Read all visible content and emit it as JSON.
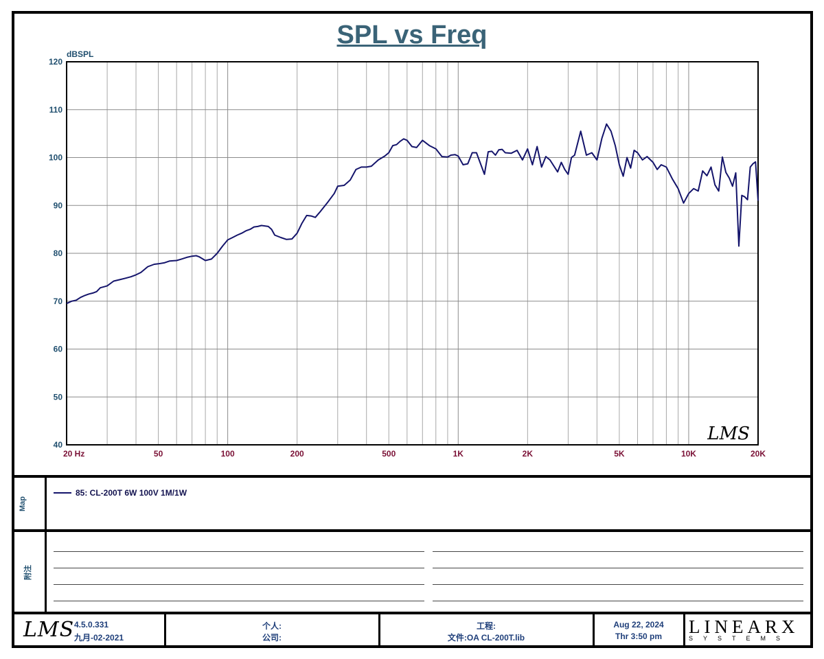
{
  "title": "SPL vs Freq",
  "chart_data": {
    "type": "line",
    "title": "SPL vs Freq",
    "ylabel": "dBSPL",
    "xscale": "log",
    "xlim": [
      20,
      20000
    ],
    "ylim": [
      40,
      120
    ],
    "y_ticks": [
      40,
      50,
      60,
      70,
      80,
      90,
      100,
      110,
      120
    ],
    "x_tick_labels": [
      {
        "f": 20,
        "label": "20  Hz"
      },
      {
        "f": 50,
        "label": "50"
      },
      {
        "f": 100,
        "label": "100"
      },
      {
        "f": 200,
        "label": "200"
      },
      {
        "f": 500,
        "label": "500"
      },
      {
        "f": 1000,
        "label": "1K"
      },
      {
        "f": 2000,
        "label": "2K"
      },
      {
        "f": 5000,
        "label": "5K"
      },
      {
        "f": 10000,
        "label": "10K"
      },
      {
        "f": 20000,
        "label": "20K"
      }
    ],
    "grid": true,
    "watermark": "LMS",
    "series": [
      {
        "name": "85: CL-200T  6W 100V 1M/1W",
        "color": "#14146b",
        "x": [
          20,
          21,
          22,
          23,
          24,
          25,
          26,
          27,
          28,
          29,
          30,
          32,
          34,
          36,
          38,
          40,
          42,
          45,
          48,
          50,
          53,
          56,
          60,
          63,
          67,
          70,
          73,
          75,
          80,
          85,
          90,
          95,
          100,
          105,
          110,
          115,
          120,
          125,
          130,
          135,
          140,
          150,
          155,
          160,
          170,
          180,
          190,
          200,
          210,
          220,
          230,
          240,
          250,
          270,
          290,
          300,
          320,
          340,
          360,
          380,
          400,
          420,
          450,
          480,
          500,
          520,
          540,
          560,
          580,
          600,
          630,
          660,
          700,
          750,
          800,
          850,
          900,
          930,
          970,
          1000,
          1050,
          1100,
          1150,
          1200,
          1300,
          1350,
          1400,
          1450,
          1500,
          1550,
          1600,
          1700,
          1800,
          1900,
          2000,
          2100,
          2200,
          2300,
          2400,
          2500,
          2700,
          2800,
          2900,
          3000,
          3100,
          3200,
          3400,
          3600,
          3800,
          4000,
          4200,
          4400,
          4600,
          4800,
          5000,
          5200,
          5400,
          5600,
          5800,
          6000,
          6300,
          6600,
          7000,
          7300,
          7600,
          8000,
          8500,
          9000,
          9500,
          10000,
          10500,
          11000,
          11500,
          12000,
          12500,
          13000,
          13500,
          14000,
          14500,
          15000,
          15500,
          16000,
          16500,
          17000,
          17500,
          18000,
          18500,
          19000,
          19500,
          20000
        ],
        "y": [
          69.5,
          70,
          70.2,
          70.8,
          71.2,
          71.5,
          71.7,
          72,
          72.8,
          73,
          73.2,
          74.2,
          74.5,
          74.8,
          75.1,
          75.5,
          76,
          77.2,
          77.7,
          77.8,
          78.0,
          78.4,
          78.5,
          78.8,
          79.2,
          79.4,
          79.5,
          79.3,
          78.5,
          78.8,
          80,
          81.5,
          82.8,
          83.3,
          83.8,
          84.2,
          84.7,
          85,
          85.5,
          85.6,
          85.8,
          85.6,
          85,
          83.8,
          83.3,
          82.9,
          83,
          84.2,
          86.3,
          87.9,
          87.8,
          87.5,
          88.5,
          90.5,
          92.5,
          94,
          94.2,
          95.3,
          97.5,
          98,
          98,
          98.2,
          99.5,
          100.3,
          101,
          102.5,
          102.7,
          103.4,
          103.9,
          103.6,
          102.3,
          102.1,
          103.6,
          102.5,
          101.8,
          100.2,
          100.1,
          100.5,
          100.6,
          100.3,
          98.5,
          98.7,
          101,
          101,
          96.5,
          101.2,
          101.3,
          100.5,
          101.6,
          101.7,
          101,
          100.9,
          101.5,
          99.5,
          101.8,
          98.5,
          102.3,
          98,
          100.2,
          99.5,
          97,
          99,
          97.5,
          96.5,
          100,
          100.5,
          105.5,
          100.5,
          101,
          99.5,
          104,
          107,
          105.5,
          102.5,
          98.5,
          96.1,
          100,
          97.8,
          101.5,
          101,
          99.5,
          100.2,
          99,
          97.5,
          98.5,
          98,
          95.5,
          93.5,
          90.5,
          92.5,
          93.5,
          93,
          97.2,
          96.2,
          98,
          94.3,
          93,
          100.1,
          96.9,
          95.7,
          94,
          96.8,
          81.5,
          92.1,
          91.8,
          91.2,
          98,
          98.7,
          99.1,
          91
        ]
      }
    ]
  },
  "map": {
    "label": "Map",
    "legend_entry": "85: CL-200T  6W 100V 1M/1W"
  },
  "notes": {
    "label": "附注"
  },
  "footer": {
    "logo": "LMS",
    "version": "4.5.0.331",
    "build_date": "九月-02-2021",
    "person_label": "个人:",
    "company_label": "公司:",
    "project_label": "工程:",
    "file_label": "文件:OA CL-200T.lib",
    "date": "Aug 22, 2024",
    "time": "Thr  3:50 pm",
    "brand_top": "LINEARX",
    "brand_bottom": "SYSTEMS"
  }
}
